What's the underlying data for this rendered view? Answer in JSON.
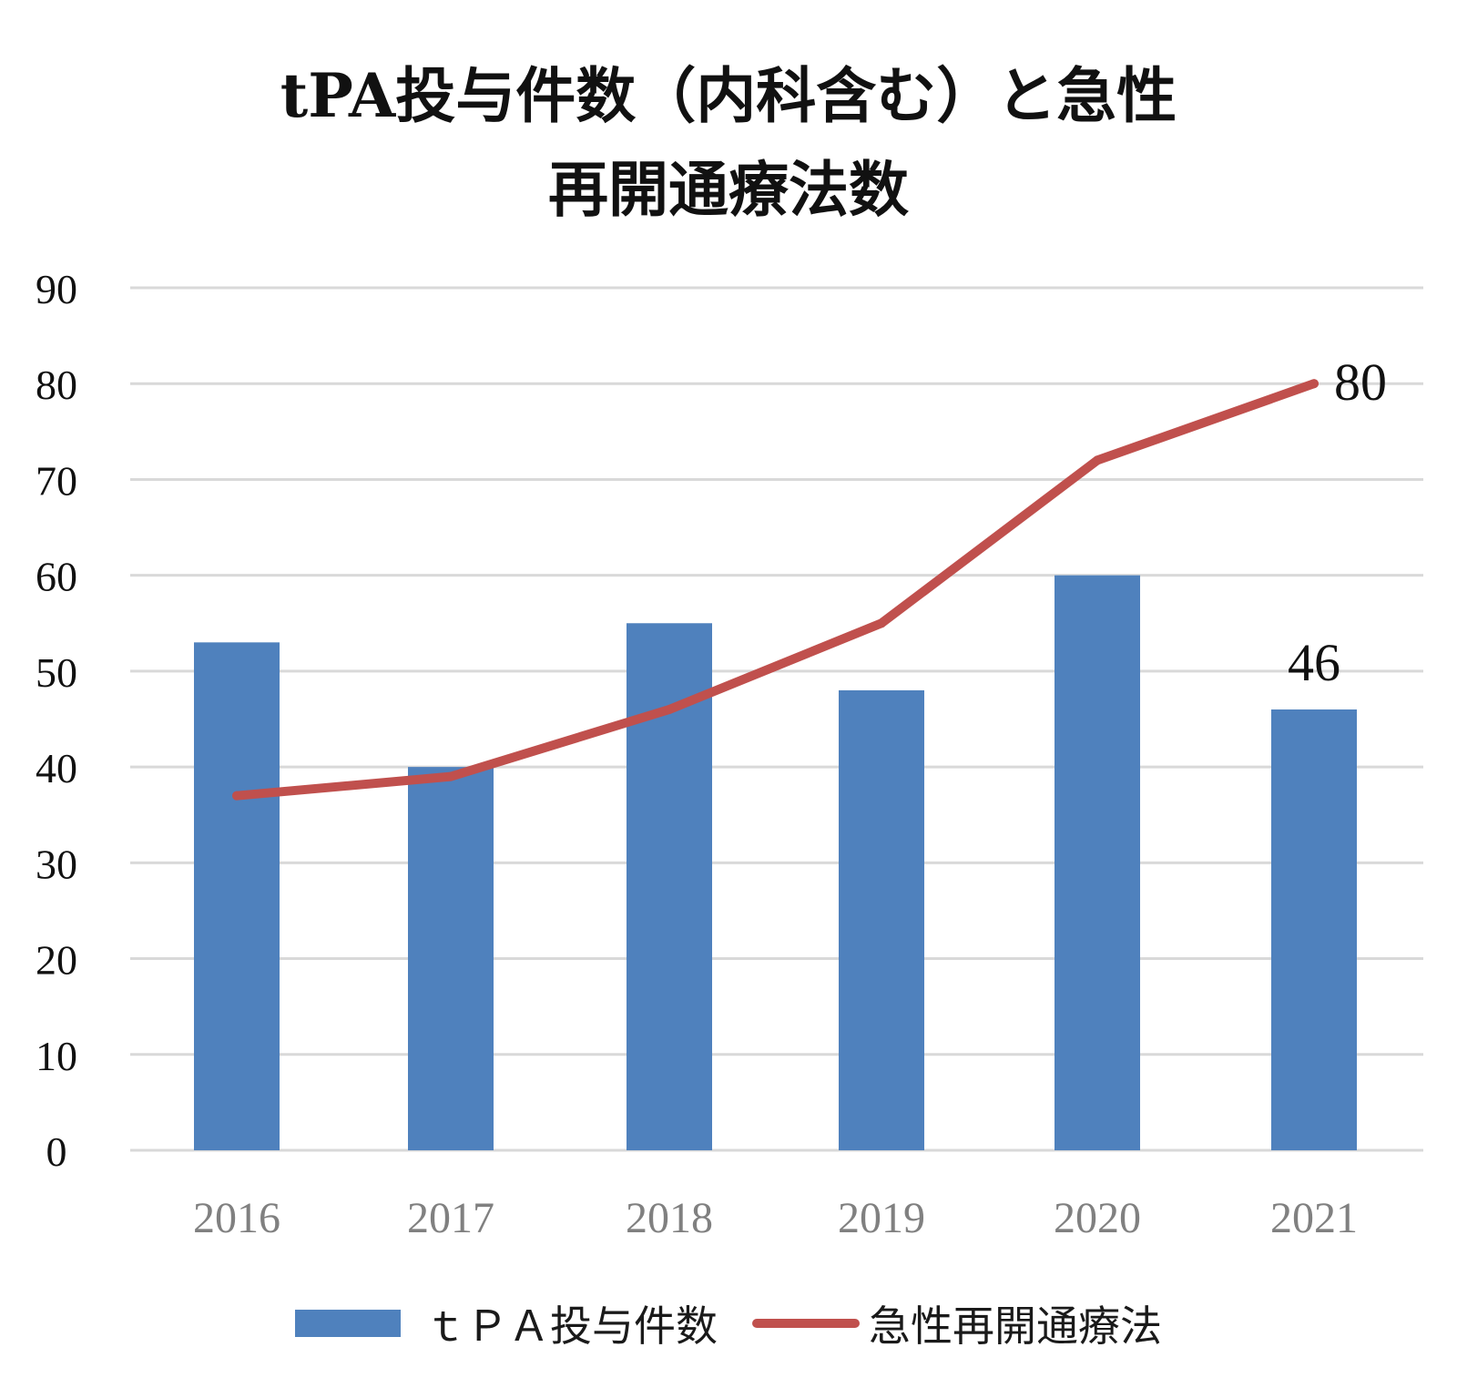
{
  "title_line1": "tPA投与件数（内科含む）と急性",
  "title_line2": "再開通療法数",
  "legend": {
    "bar_label": "ｔＰＡ投与件数",
    "line_label": "急性再開通療法"
  },
  "colors": {
    "bar": "#4f81bd",
    "line": "#c0504d",
    "grid": "#d9d9d9",
    "axis_text": "#111111",
    "category_text": "#808080"
  },
  "chart_data": {
    "type": "bar",
    "categories": [
      "2016",
      "2017",
      "2018",
      "2019",
      "2020",
      "2021"
    ],
    "series": [
      {
        "name": "ｔＰＡ投与件数",
        "type": "bar",
        "values": [
          53,
          40,
          55,
          48,
          60,
          46
        ]
      },
      {
        "name": "急性再開通療法",
        "type": "line",
        "values": [
          37,
          39,
          46,
          55,
          72,
          80
        ]
      }
    ],
    "ylim": [
      0,
      90
    ],
    "yticks": [
      0,
      10,
      20,
      30,
      40,
      50,
      60,
      70,
      80,
      90
    ],
    "data_labels": [
      {
        "series": 0,
        "index": 5,
        "text": "46"
      },
      {
        "series": 1,
        "index": 5,
        "text": "80"
      }
    ],
    "grid": true,
    "legend_position": "bottom"
  }
}
